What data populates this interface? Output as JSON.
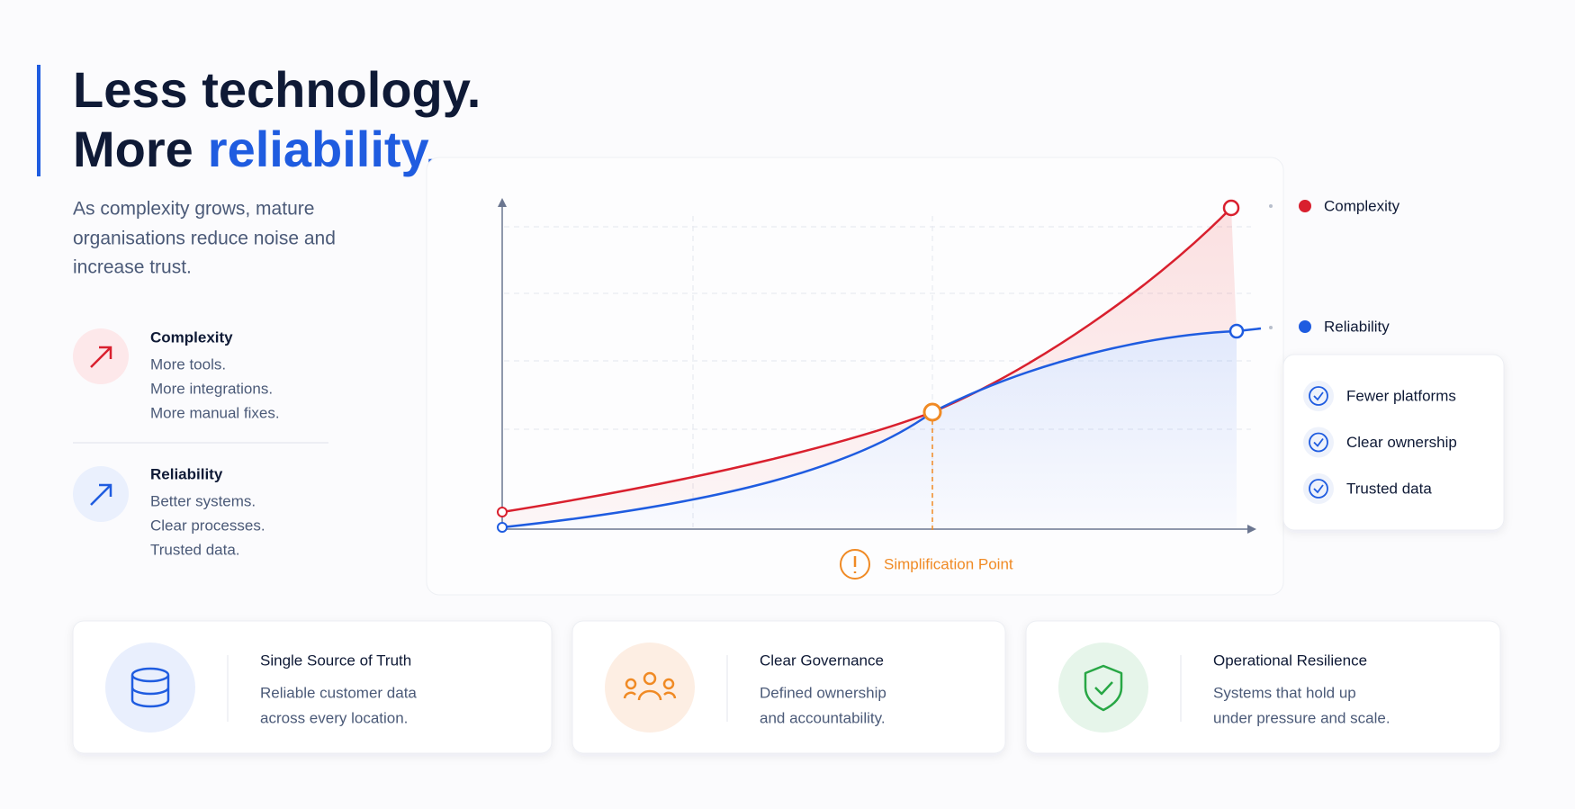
{
  "header": {
    "title_line1": "Less technology.",
    "title_line2": [
      "More",
      "reliability."
    ],
    "subtitle": [
      "As complexity grows, mature",
      "organisations reduce noise and",
      "increase trust."
    ]
  },
  "items": [
    {
      "heading": "Complexity",
      "lines": [
        "More tools.",
        "More integrations.",
        "More manual fixes."
      ]
    },
    {
      "heading": "Reliability",
      "lines": [
        "Better systems.",
        "Clear processes.",
        "Trusted data."
      ]
    }
  ],
  "chart": {
    "legend": [
      "Complexity",
      "Reliability"
    ],
    "annotation": "Simplification Point",
    "checklist": [
      "Fewer platforms",
      "Clear ownership",
      "Trusted data"
    ]
  },
  "cards": [
    {
      "title": "Single Source of Truth",
      "lines": [
        "Reliable customer data",
        "across every location."
      ]
    },
    {
      "title": "Clear Governance",
      "lines": [
        "Defined ownership",
        "and accountability."
      ]
    },
    {
      "title": "Operational Resilience",
      "lines": [
        "Systems that hold up",
        "under pressure and scale."
      ]
    }
  ]
}
